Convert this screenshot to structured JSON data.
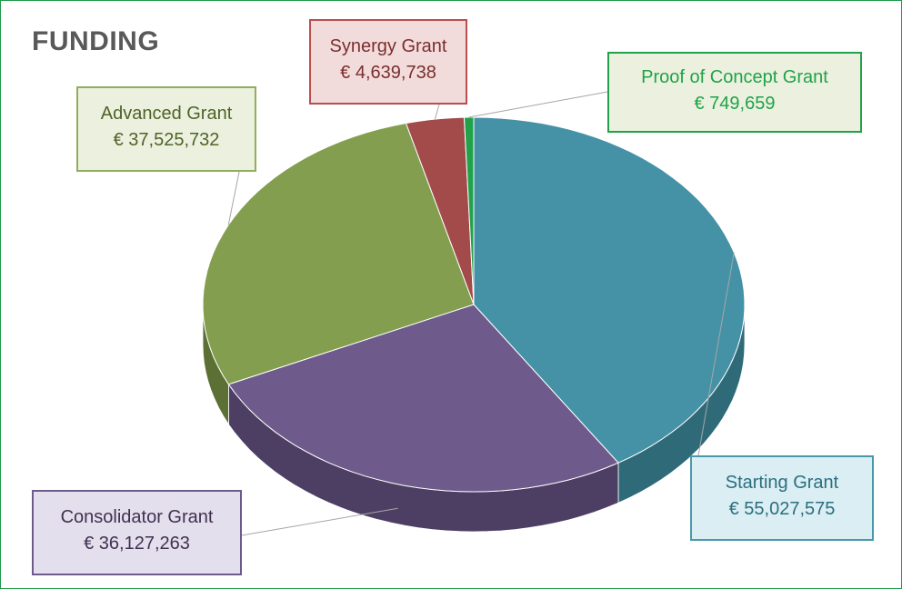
{
  "title": "FUNDING",
  "chart_data": {
    "type": "pie",
    "title": "FUNDING",
    "slices": [
      {
        "name": "Starting Grant",
        "value": 55027575,
        "value_label": "€ 55,027,575",
        "color": "#4592a6",
        "side_color": "#2f6a79",
        "label_color": "#2b6f80",
        "box_bg": "#daeef3",
        "box_border": "#4a98ab"
      },
      {
        "name": "Consolidator Grant",
        "value": 36127263,
        "value_label": "€ 36,127,263",
        "color": "#6e5b8b",
        "side_color": "#4d3f63",
        "label_color": "#403152",
        "box_bg": "#e4dfec",
        "box_border": "#6e5b8b"
      },
      {
        "name": "Advanced Grant",
        "value": 37525732,
        "value_label": "€ 37,525,732",
        "color": "#839e4e",
        "side_color": "#5c7036",
        "label_color": "#4f6228",
        "box_bg": "#ebf1de",
        "box_border": "#93ad5e"
      },
      {
        "name": "Synergy Grant",
        "value": 4639738,
        "value_label": "€ 4,639,738",
        "color": "#a34a4a",
        "side_color": "#7a3535",
        "label_color": "#7a2e2e",
        "box_bg": "#f2dcdb",
        "box_border": "#b84f4f"
      },
      {
        "name": "Proof of Concept Grant",
        "value": 749659,
        "value_label": "€  749,659",
        "color": "#21a24a",
        "side_color": "#157a35",
        "label_color": "#21a24a",
        "box_bg": "#ebf1de",
        "box_border": "#21a24a"
      }
    ]
  }
}
